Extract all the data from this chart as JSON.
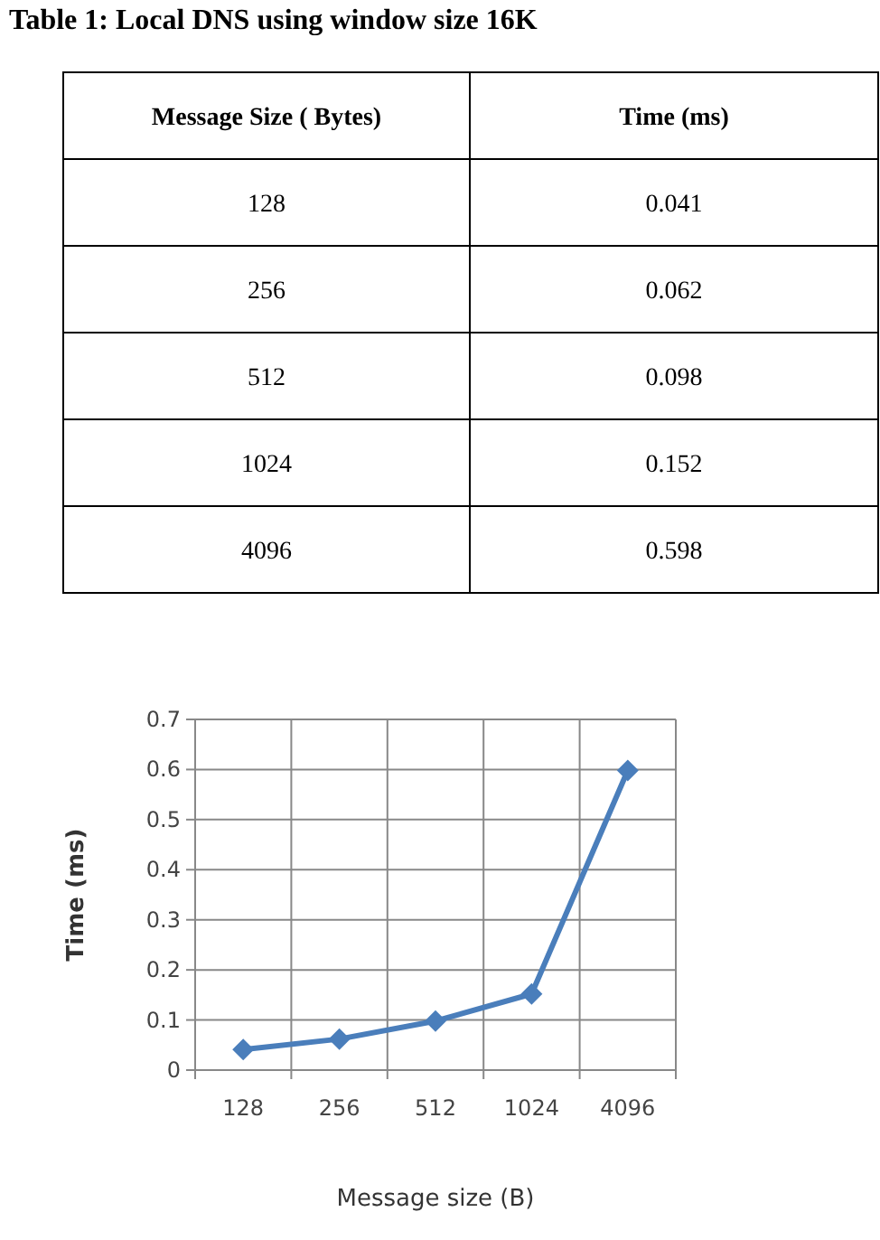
{
  "chart_data": [
    {
      "type": "other",
      "title": "Table 1: Local DNS using window size 16K",
      "annotations": [
        "Message Size ( Bytes)",
        "Time (ms)",
        "128",
        "0.041",
        "256",
        "0.062",
        "512",
        "0.098",
        "1024",
        "0.152",
        "4096",
        "0.598"
      ]
    },
    {
      "type": "line",
      "categories": [
        "128",
        "256",
        "512",
        "1024",
        "4096"
      ],
      "series": [
        {
          "color": "#4a7ebb",
          "values": [
            0.041,
            0.062,
            0.098,
            0.152,
            0.598
          ]
        }
      ],
      "xlabel": "Message size (B)",
      "ylabel": "Time (ms)",
      "ylim": [
        0,
        0.7
      ],
      "yticks": [
        0,
        0.1,
        0.2,
        0.3,
        0.4,
        0.5,
        0.6,
        0.7
      ],
      "grid": true,
      "marker": "diamond",
      "line_style": "solid"
    }
  ]
}
